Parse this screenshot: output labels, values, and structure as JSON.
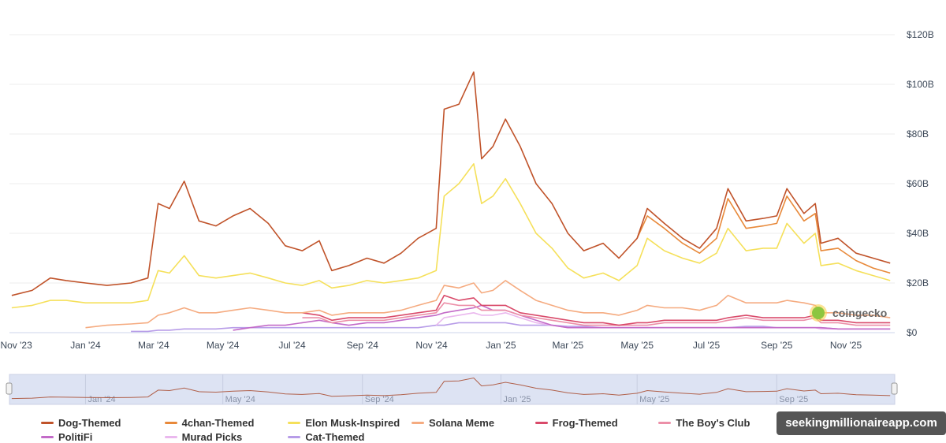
{
  "chart_data": {
    "type": "line",
    "title": "",
    "xlabel": "",
    "ylabel": "",
    "y_ticks": [
      "$0",
      "$20B",
      "$40B",
      "$60B",
      "$80B",
      "$100B",
      "$120B"
    ],
    "y_tick_values": [
      0,
      20,
      40,
      60,
      80,
      100,
      120
    ],
    "ylim": [
      0,
      120
    ],
    "y_unit": "USD billions",
    "x_ticks": [
      "Nov '23",
      "Jan '24",
      "Mar '24",
      "May '24",
      "Jul '24",
      "Sep '24",
      "Nov '24",
      "Jan '25",
      "Mar '25",
      "May '25",
      "Jul '25",
      "Sep '25",
      "Nov '25"
    ],
    "x_tick_dates": [
      "2023-11-01",
      "2024-01-01",
      "2024-03-01",
      "2024-05-01",
      "2024-07-01",
      "2024-09-01",
      "2024-11-01",
      "2025-01-01",
      "2025-03-01",
      "2025-05-01",
      "2025-07-01",
      "2025-09-01",
      "2025-11-01"
    ],
    "xlim": [
      "2023-10-26",
      "2025-12-14"
    ],
    "navigator_ticks": [
      "Jan '24",
      "May '24",
      "Sep '24",
      "Jan '25",
      "May '25",
      "Sep '25"
    ],
    "navigator_tick_dates": [
      "2024-01-01",
      "2024-05-01",
      "2024-09-01",
      "2025-01-01",
      "2025-05-01",
      "2025-09-01"
    ],
    "grid": true,
    "legend_position": "bottom",
    "x": [
      "2023-10-28",
      "2023-11-15",
      "2023-12-01",
      "2023-12-15",
      "2024-01-01",
      "2024-01-20",
      "2024-02-10",
      "2024-02-25",
      "2024-03-05",
      "2024-03-15",
      "2024-03-28",
      "2024-04-10",
      "2024-04-25",
      "2024-05-10",
      "2024-05-25",
      "2024-06-10",
      "2024-06-25",
      "2024-07-10",
      "2024-07-25",
      "2024-08-05",
      "2024-08-20",
      "2024-09-05",
      "2024-09-20",
      "2024-10-05",
      "2024-10-20",
      "2024-11-05",
      "2024-11-12",
      "2024-11-25",
      "2024-12-08",
      "2024-12-15",
      "2024-12-25",
      "2025-01-05",
      "2025-01-18",
      "2025-02-01",
      "2025-02-15",
      "2025-03-01",
      "2025-03-15",
      "2025-04-01",
      "2025-04-15",
      "2025-05-01",
      "2025-05-10",
      "2025-05-25",
      "2025-06-10",
      "2025-06-25",
      "2025-07-10",
      "2025-07-20",
      "2025-08-05",
      "2025-08-20",
      "2025-09-01",
      "2025-09-10",
      "2025-09-25",
      "2025-10-05",
      "2025-10-10",
      "2025-10-25",
      "2025-11-10",
      "2025-11-25",
      "2025-12-10"
    ],
    "series": [
      {
        "name": "Dog-Themed",
        "color": "#c0532a",
        "values": [
          15,
          17,
          22,
          21,
          20,
          19,
          20,
          22,
          52,
          50,
          61,
          45,
          43,
          47,
          50,
          44,
          35,
          33,
          37,
          25,
          27,
          30,
          28,
          32,
          38,
          42,
          90,
          92,
          105,
          70,
          75,
          86,
          75,
          60,
          52,
          40,
          33,
          36,
          30,
          38,
          50,
          44,
          38,
          34,
          42,
          58,
          45,
          46,
          47,
          58,
          48,
          52,
          36,
          38,
          32,
          30,
          28
        ]
      },
      {
        "name": "4chan-Themed",
        "color": "#e8893a",
        "values": [
          null,
          null,
          null,
          null,
          null,
          null,
          null,
          null,
          null,
          null,
          null,
          null,
          null,
          null,
          null,
          null,
          null,
          null,
          null,
          null,
          null,
          null,
          null,
          null,
          null,
          null,
          null,
          null,
          null,
          null,
          null,
          null,
          null,
          null,
          null,
          null,
          null,
          null,
          null,
          38,
          47,
          42,
          36,
          32,
          38,
          54,
          42,
          43,
          44,
          55,
          45,
          48,
          33,
          34,
          29,
          26,
          24
        ]
      },
      {
        "name": "Elon Musk-Inspired",
        "color": "#f5e05a",
        "values": [
          10,
          11,
          13,
          13,
          12,
          12,
          12,
          13,
          25,
          24,
          31,
          23,
          22,
          23,
          24,
          22,
          20,
          19,
          21,
          18,
          19,
          21,
          20,
          21,
          22,
          25,
          55,
          60,
          68,
          52,
          55,
          62,
          52,
          40,
          34,
          26,
          22,
          24,
          21,
          27,
          38,
          33,
          30,
          28,
          32,
          42,
          33,
          34,
          34,
          44,
          36,
          40,
          27,
          28,
          25,
          23,
          21
        ]
      },
      {
        "name": "Solana Meme",
        "color": "#f5ab80",
        "values": [
          null,
          null,
          null,
          null,
          2,
          3,
          3.5,
          4,
          7,
          8,
          10,
          8,
          8,
          9,
          10,
          9,
          8,
          8,
          9,
          7,
          8,
          8,
          8,
          9,
          11,
          13,
          19,
          18,
          20,
          16,
          17,
          21,
          17,
          13,
          11,
          9,
          8,
          8,
          7,
          9,
          11,
          10,
          10,
          9,
          11,
          15,
          12,
          12,
          12,
          13,
          12,
          11,
          8,
          8,
          7,
          7,
          6
        ]
      },
      {
        "name": "Frog-Themed",
        "color": "#d94a6a",
        "values": [
          null,
          null,
          null,
          null,
          null,
          null,
          null,
          null,
          null,
          null,
          null,
          null,
          null,
          null,
          null,
          null,
          null,
          8,
          7,
          5,
          6,
          6,
          6,
          7,
          8,
          9,
          15,
          13,
          14,
          11,
          11,
          11,
          8,
          7,
          6,
          5,
          4,
          4,
          3,
          4,
          4,
          5,
          5,
          5,
          5,
          6,
          7,
          6,
          6,
          6,
          6,
          7,
          5,
          5,
          4,
          4,
          4
        ]
      },
      {
        "name": "The Boy's Club",
        "color": "#ec8fa8",
        "values": [
          null,
          null,
          null,
          null,
          null,
          null,
          null,
          null,
          null,
          null,
          null,
          null,
          null,
          null,
          null,
          null,
          null,
          6,
          6,
          4,
          5,
          5,
          5,
          6,
          7,
          8,
          12,
          11,
          11,
          9,
          9,
          9,
          7,
          6,
          5,
          4,
          3,
          3,
          3,
          3,
          3,
          4,
          4,
          4,
          4,
          5,
          6,
          5,
          5,
          5,
          5,
          6,
          4,
          4,
          3,
          3,
          3
        ]
      },
      {
        "name": "PolitiFi",
        "color": "#c36bc8",
        "values": [
          null,
          null,
          null,
          null,
          null,
          null,
          null,
          null,
          null,
          null,
          null,
          null,
          null,
          1,
          2,
          3,
          3,
          4,
          5,
          4,
          3,
          4,
          4,
          5,
          6,
          7,
          8,
          9,
          10,
          11,
          9,
          9,
          7,
          5,
          3,
          2,
          2,
          2,
          2,
          2,
          2,
          2,
          2,
          2,
          2,
          2,
          2,
          2,
          2,
          2,
          2,
          2,
          2,
          1.5,
          1.5,
          1.5,
          1.5
        ]
      },
      {
        "name": "Murad Picks",
        "color": "#eab8ee",
        "values": [
          null,
          null,
          null,
          null,
          null,
          null,
          null,
          null,
          null,
          null,
          null,
          null,
          null,
          null,
          null,
          null,
          null,
          null,
          null,
          null,
          null,
          null,
          null,
          null,
          null,
          3,
          6,
          7,
          8,
          7,
          7,
          8,
          6,
          4,
          3,
          2,
          2,
          2,
          2,
          2,
          2,
          2,
          2,
          2,
          2,
          2,
          2,
          2,
          2,
          2,
          2,
          2,
          1.5,
          1.5,
          1.5,
          1.5,
          1.5
        ]
      },
      {
        "name": "Cat-Themed",
        "color": "#b79ce8",
        "values": [
          null,
          null,
          null,
          null,
          null,
          null,
          0.5,
          0.5,
          1,
          1,
          1.5,
          1.5,
          1.5,
          2,
          2,
          2,
          2,
          2,
          2,
          2,
          2,
          2,
          2,
          2,
          2,
          3,
          3,
          4,
          4,
          4,
          4,
          4,
          3,
          3,
          3,
          2.5,
          2.5,
          2,
          2,
          2,
          2,
          2,
          2,
          2,
          2,
          2,
          2.5,
          2.5,
          2,
          2,
          2,
          2,
          2,
          1.5,
          1.5,
          1.5,
          1.5
        ]
      }
    ]
  },
  "watermark": "seekingmillionaireapp.com",
  "source_logo": "coingecko",
  "source_logo_icon": "gecko-icon"
}
